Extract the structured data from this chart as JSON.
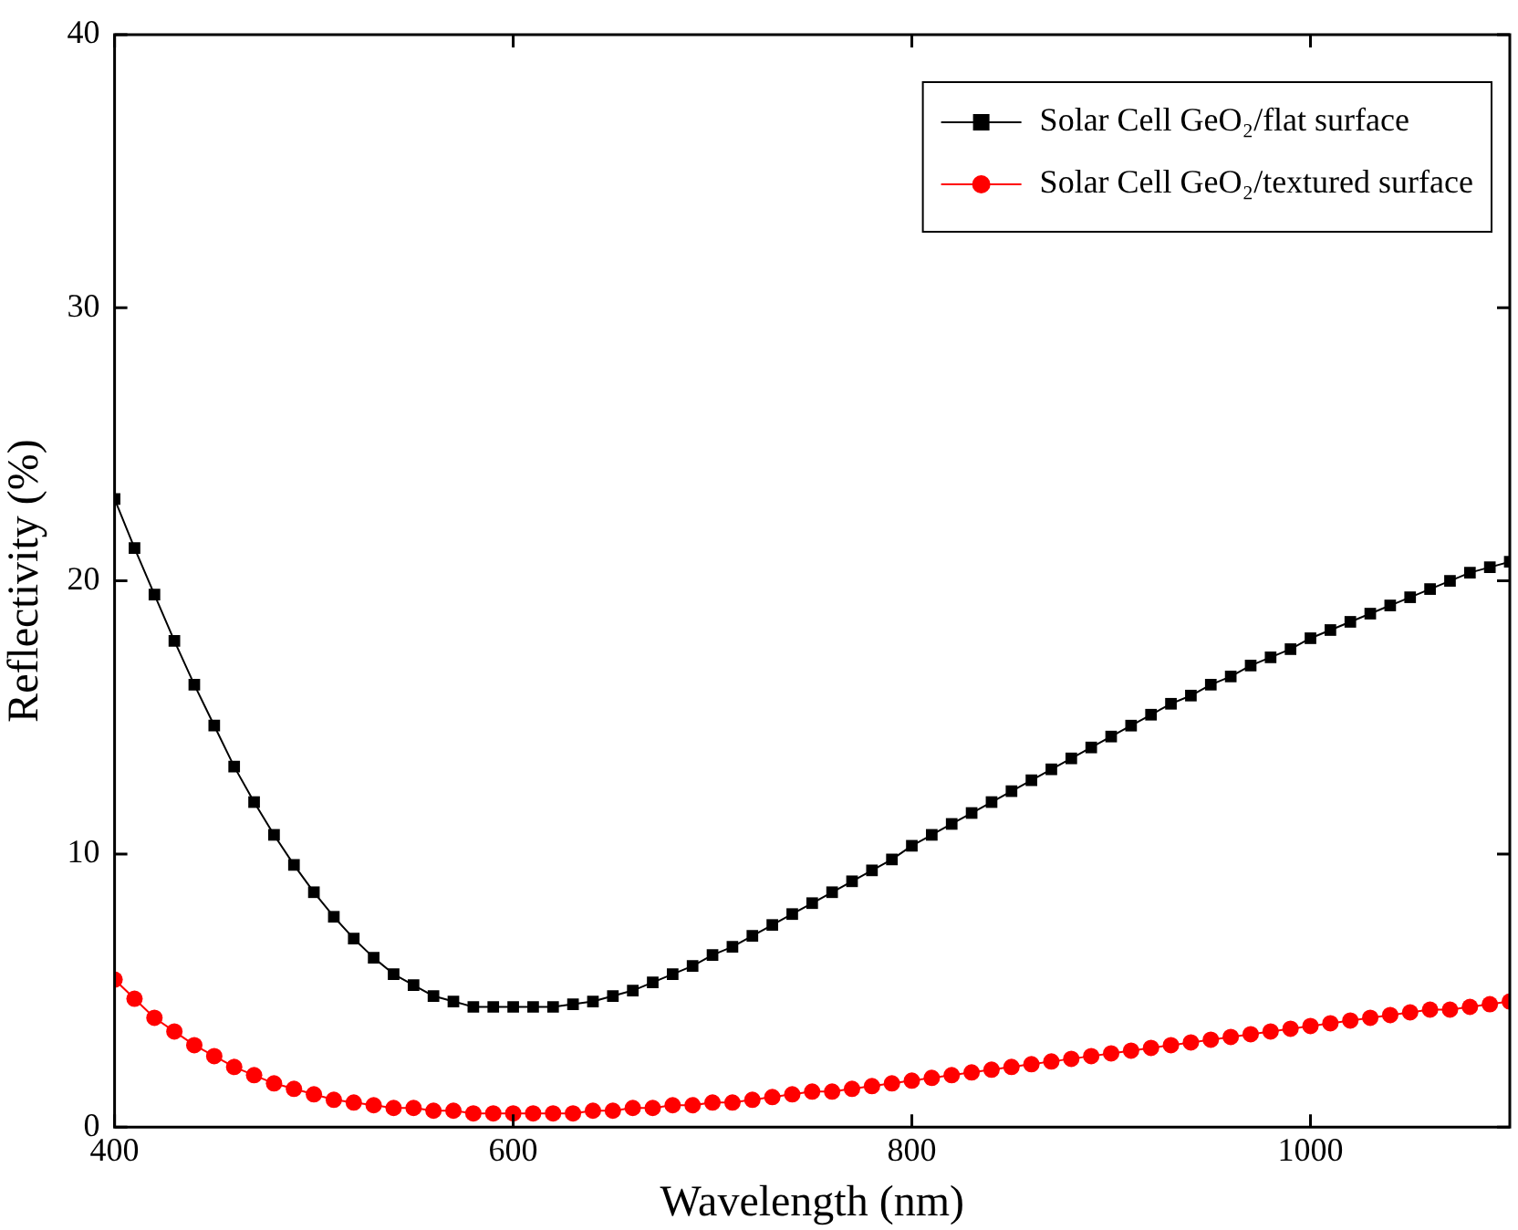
{
  "chart_data": {
    "type": "line",
    "xlabel": "Wavelength (nm)",
    "ylabel": "Reflectivity (%)",
    "x": [
      400,
      410,
      420,
      430,
      440,
      450,
      460,
      470,
      480,
      490,
      500,
      510,
      520,
      530,
      540,
      550,
      560,
      570,
      580,
      590,
      600,
      610,
      620,
      630,
      640,
      650,
      660,
      670,
      680,
      690,
      700,
      710,
      720,
      730,
      740,
      750,
      760,
      770,
      780,
      790,
      800,
      810,
      820,
      830,
      840,
      850,
      860,
      870,
      880,
      890,
      900,
      910,
      920,
      930,
      940,
      950,
      960,
      970,
      980,
      990,
      1000,
      1010,
      1020,
      1030,
      1040,
      1050,
      1060,
      1070,
      1080,
      1090,
      1100
    ],
    "series": [
      {
        "name": "Solar Cell GeO₂/flat surface",
        "color": "#000000",
        "marker": "square",
        "values": [
          23.0,
          21.2,
          19.5,
          17.8,
          16.2,
          14.7,
          13.2,
          11.9,
          10.7,
          9.6,
          8.6,
          7.7,
          6.9,
          6.2,
          5.6,
          5.2,
          4.8,
          4.6,
          4.4,
          4.4,
          4.4,
          4.4,
          4.4,
          4.5,
          4.6,
          4.8,
          5.0,
          5.3,
          5.6,
          5.9,
          6.3,
          6.6,
          7.0,
          7.4,
          7.8,
          8.2,
          8.6,
          9.0,
          9.4,
          9.8,
          10.3,
          10.7,
          11.1,
          11.5,
          11.9,
          12.3,
          12.7,
          13.1,
          13.5,
          13.9,
          14.3,
          14.7,
          15.1,
          15.5,
          15.8,
          16.2,
          16.5,
          16.9,
          17.2,
          17.5,
          17.9,
          18.2,
          18.5,
          18.8,
          19.1,
          19.4,
          19.7,
          20.0,
          20.3,
          20.5,
          20.7
        ]
      },
      {
        "name": "Solar Cell GeO₂/textured surface",
        "color": "#ff0000",
        "marker": "circle",
        "values": [
          5.4,
          4.7,
          4.0,
          3.5,
          3.0,
          2.6,
          2.2,
          1.9,
          1.6,
          1.4,
          1.2,
          1.0,
          0.9,
          0.8,
          0.7,
          0.7,
          0.6,
          0.6,
          0.5,
          0.5,
          0.5,
          0.5,
          0.5,
          0.5,
          0.6,
          0.6,
          0.7,
          0.7,
          0.8,
          0.8,
          0.9,
          0.9,
          1.0,
          1.1,
          1.2,
          1.3,
          1.3,
          1.4,
          1.5,
          1.6,
          1.7,
          1.8,
          1.9,
          2.0,
          2.1,
          2.2,
          2.3,
          2.4,
          2.5,
          2.6,
          2.7,
          2.8,
          2.9,
          3.0,
          3.1,
          3.2,
          3.3,
          3.4,
          3.5,
          3.6,
          3.7,
          3.8,
          3.9,
          4.0,
          4.1,
          4.2,
          4.3,
          4.3,
          4.4,
          4.5,
          4.6
        ]
      }
    ],
    "xlim": [
      400,
      1100
    ],
    "xticks": [
      400,
      600,
      800,
      1000
    ],
    "ylim": [
      0,
      40
    ],
    "yticks": [
      0,
      10,
      20,
      30,
      40
    ],
    "grid": false,
    "legend": "top right",
    "line_style": "solid"
  }
}
